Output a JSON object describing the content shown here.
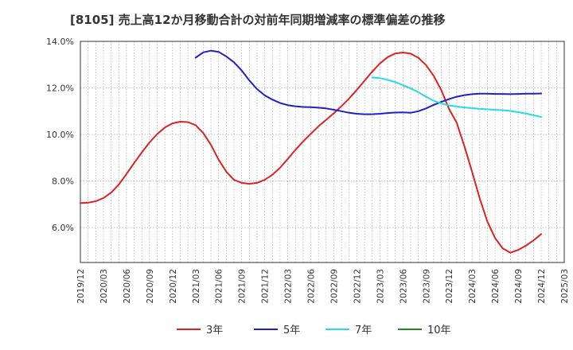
{
  "chart_data": {
    "type": "line",
    "title": "[8105]  売上高12か月移動合計の対前年同期増減率の標準偏差の推移",
    "xlabel": "",
    "ylabel": "",
    "ylim": [
      4.5,
      14.0
    ],
    "yticks": [
      "6.0%",
      "8.0%",
      "10.0%",
      "12.0%",
      "14.0%"
    ],
    "ytick_values": [
      6.0,
      8.0,
      10.0,
      12.0,
      14.0
    ],
    "xticks": [
      "2019/12",
      "2020/03",
      "2020/06",
      "2020/09",
      "2020/12",
      "2021/03",
      "2021/06",
      "2021/09",
      "2021/12",
      "2022/03",
      "2022/06",
      "2022/09",
      "2022/12",
      "2023/03",
      "2023/06",
      "2023/09",
      "2023/12",
      "2024/03",
      "2024/06",
      "2024/09",
      "2024/12",
      "2025/03"
    ],
    "grid": true,
    "legend_position": "bottom",
    "series": [
      {
        "name": "3年",
        "color": "#dd2222",
        "x": [
          "2019/12",
          "2020/01",
          "2020/02",
          "2020/03",
          "2020/04",
          "2020/05",
          "2020/06",
          "2020/07",
          "2020/08",
          "2020/09",
          "2020/10",
          "2020/11",
          "2020/12",
          "2021/01",
          "2021/02",
          "2021/03",
          "2021/04",
          "2021/05",
          "2021/06",
          "2021/07",
          "2021/08",
          "2021/09",
          "2021/10",
          "2021/11",
          "2021/12",
          "2022/01",
          "2022/02",
          "2022/03",
          "2022/04",
          "2022/05",
          "2022/06",
          "2022/07",
          "2022/08",
          "2022/09",
          "2022/10",
          "2022/11",
          "2022/12",
          "2023/01",
          "2023/02",
          "2023/03",
          "2023/04",
          "2023/05",
          "2023/06",
          "2023/07",
          "2023/08",
          "2023/09",
          "2023/10",
          "2023/11",
          "2023/12",
          "2024/01",
          "2024/02",
          "2024/03",
          "2024/04",
          "2024/05",
          "2024/06",
          "2024/07",
          "2024/08",
          "2024/09",
          "2024/10",
          "2024/11",
          "2024/12"
        ],
        "values": [
          7.05,
          7.07,
          7.13,
          7.27,
          7.5,
          7.85,
          8.3,
          8.78,
          9.23,
          9.66,
          10.02,
          10.3,
          10.48,
          10.55,
          10.53,
          10.4,
          10.06,
          9.55,
          8.92,
          8.4,
          8.05,
          7.92,
          7.88,
          7.92,
          8.05,
          8.27,
          8.57,
          8.95,
          9.34,
          9.7,
          10.03,
          10.35,
          10.63,
          10.91,
          11.22,
          11.55,
          11.92,
          12.31,
          12.7,
          13.05,
          13.32,
          13.48,
          13.52,
          13.47,
          13.3,
          12.98,
          12.52,
          11.9,
          11.1,
          10.5,
          9.5,
          8.4,
          7.25,
          6.25,
          5.55,
          5.1,
          4.92,
          5.04,
          5.22,
          5.45,
          5.72
        ]
      },
      {
        "name": "5年",
        "color": "#1f1fcc",
        "x": [
          "2021/03",
          "2021/04",
          "2021/05",
          "2021/06",
          "2021/07",
          "2021/08",
          "2021/09",
          "2021/10",
          "2021/11",
          "2021/12",
          "2022/01",
          "2022/02",
          "2022/03",
          "2022/04",
          "2022/05",
          "2022/06",
          "2022/07",
          "2022/08",
          "2022/09",
          "2022/10",
          "2022/11",
          "2022/12",
          "2023/01",
          "2023/02",
          "2023/03",
          "2023/04",
          "2023/05",
          "2023/06",
          "2023/07",
          "2023/08",
          "2023/09",
          "2023/10",
          "2023/11",
          "2023/12",
          "2024/01",
          "2024/02",
          "2024/03",
          "2024/04",
          "2024/05",
          "2024/06",
          "2024/07",
          "2024/08",
          "2024/09",
          "2024/10",
          "2024/11",
          "2024/12"
        ],
        "values": [
          13.3,
          13.53,
          13.6,
          13.55,
          13.35,
          13.1,
          12.75,
          12.32,
          11.95,
          11.68,
          11.5,
          11.35,
          11.26,
          11.21,
          11.18,
          11.17,
          11.15,
          11.12,
          11.06,
          11.0,
          10.93,
          10.89,
          10.87,
          10.87,
          10.89,
          10.92,
          10.94,
          10.95,
          10.93,
          11.0,
          11.12,
          11.27,
          11.4,
          11.52,
          11.62,
          11.69,
          11.73,
          11.75,
          11.75,
          11.74,
          11.74,
          11.73,
          11.74,
          11.75,
          11.75,
          11.76
        ]
      },
      {
        "name": "7年",
        "color": "#22dddd",
        "x": [
          "2023/02",
          "2023/03",
          "2023/04",
          "2023/05",
          "2023/06",
          "2023/07",
          "2023/08",
          "2023/09",
          "2023/10",
          "2023/11",
          "2023/12",
          "2024/01",
          "2024/02",
          "2024/03",
          "2024/04",
          "2024/05",
          "2024/06",
          "2024/07",
          "2024/08",
          "2024/09",
          "2024/10",
          "2024/11",
          "2024/12"
        ],
        "values": [
          12.45,
          12.42,
          12.35,
          12.25,
          12.12,
          11.98,
          11.82,
          11.62,
          11.45,
          11.33,
          11.25,
          11.2,
          11.16,
          11.13,
          11.1,
          11.08,
          11.06,
          11.04,
          11.01,
          10.96,
          10.9,
          10.83,
          10.75
        ]
      },
      {
        "name": "10年",
        "color": "#228822",
        "x": [],
        "values": []
      }
    ]
  }
}
